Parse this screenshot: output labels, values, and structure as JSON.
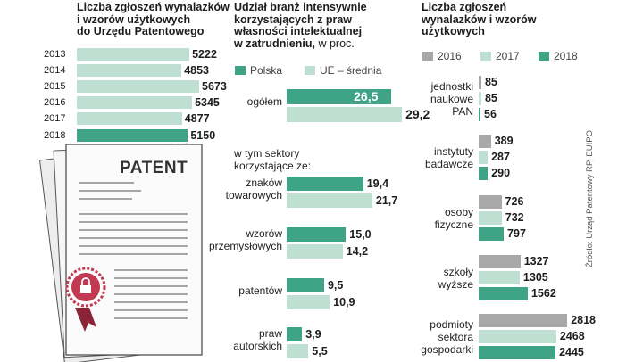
{
  "colors": {
    "dark_teal": "#3fa386",
    "light_teal": "#bfdfd2",
    "grey": "#a8a8a8",
    "doc_fill": "#ededed",
    "seal": "#c23a51"
  },
  "panel1": {
    "title_lines": [
      "Liczba zgłoszeń wynalazków",
      "i wzorów użytkowych",
      "do Urzędu Patentowego"
    ],
    "doc_label": "PATENT"
  },
  "panel2": {
    "title_lines": [
      "Udział branż intensywnie",
      "korzystających z praw",
      "własności intelektualnej",
      "w zatrudnieniu,"
    ],
    "title_unit": " w proc.",
    "section_lines": [
      "w tym sektory",
      "korzystające ze:"
    ]
  },
  "panel3": {
    "title_lines": [
      "Liczba zgłoszeń",
      "wynalazków i wzorów",
      "użytkowych"
    ]
  },
  "source": "Źródło: Urząd Patentowy RP, EUIPO",
  "chart_data": [
    {
      "type": "bar",
      "title": "Liczba zgłoszeń wynalazków i wzorów użytkowych do Urzędu Patentowego",
      "categories": [
        "2013",
        "2014",
        "2015",
        "2016",
        "2017",
        "2018"
      ],
      "values": [
        5222,
        4853,
        5673,
        5345,
        4877,
        5150
      ],
      "highlight": "2018"
    },
    {
      "type": "bar",
      "title": "Udział branż intensywnie korzystających z praw własności intelektualnej w zatrudnieniu, w proc.",
      "categories": [
        [
          "ogółem"
        ],
        [
          "znaków",
          "towarowych"
        ],
        [
          "wzorów",
          "przemysłowych"
        ],
        [
          "patentów"
        ],
        [
          "praw",
          "autorskich"
        ]
      ],
      "series": [
        {
          "name": "Polska",
          "values": [
            "26,5",
            "19,4",
            "15,0",
            "9,5",
            "3,9"
          ],
          "num": [
            26.5,
            19.4,
            15.0,
            9.5,
            3.9
          ]
        },
        {
          "name": "UE – średnia",
          "values": [
            "29,2",
            "21,7",
            "14,2",
            "10,9",
            "5,5"
          ],
          "num": [
            29.2,
            21.7,
            14.2,
            10.9,
            5.5
          ]
        }
      ]
    },
    {
      "type": "bar",
      "title": "Liczba zgłoszeń wynalazków i wzorów użytkowych",
      "categories": [
        [
          "jednostki",
          "naukowe",
          "PAN"
        ],
        [
          "instytuty",
          "badawcze"
        ],
        [
          "osoby",
          "fizyczne"
        ],
        [
          "szkoły",
          "wyższe"
        ],
        [
          "podmioty",
          "sektora",
          "gospodarki"
        ]
      ],
      "series": [
        {
          "name": "2016",
          "values": [
            85,
            389,
            726,
            1327,
            2818
          ]
        },
        {
          "name": "2017",
          "values": [
            85,
            287,
            732,
            1305,
            2468
          ]
        },
        {
          "name": "2018",
          "values": [
            56,
            290,
            797,
            1562,
            2445
          ]
        }
      ]
    }
  ]
}
